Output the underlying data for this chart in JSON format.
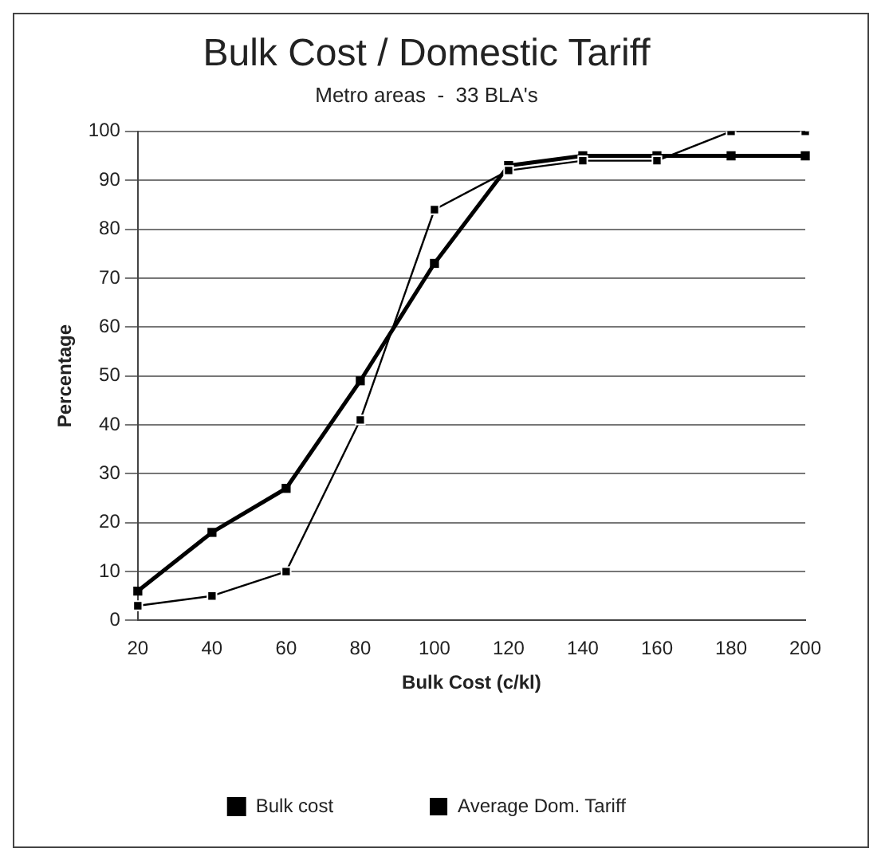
{
  "chart_data": {
    "type": "line",
    "title": "Bulk Cost / Domestic Tariff",
    "subtitle": "Metro areas  -  33 BLA's",
    "xlabel": "Bulk Cost (c/kl)",
    "ylabel": "Percentage",
    "categories": [
      "20",
      "40",
      "60",
      "80",
      "100",
      "120",
      "140",
      "160",
      "180",
      "200"
    ],
    "series": [
      {
        "name": "Bulk cost",
        "color": "#000000",
        "values": [
          6,
          18,
          27,
          49,
          73,
          93,
          95,
          95,
          95,
          95
        ]
      },
      {
        "name": "Average Dom. Tariff",
        "color": "#000000",
        "values": [
          3,
          5,
          10,
          41,
          84,
          92,
          94,
          94,
          100,
          100
        ]
      }
    ],
    "ylim": [
      0,
      100
    ],
    "yticks": [
      0,
      10,
      20,
      30,
      40,
      50,
      60,
      70,
      80,
      90,
      100
    ],
    "grid": "y",
    "legend": "bottom",
    "marker": "square",
    "line_style": "solid"
  }
}
